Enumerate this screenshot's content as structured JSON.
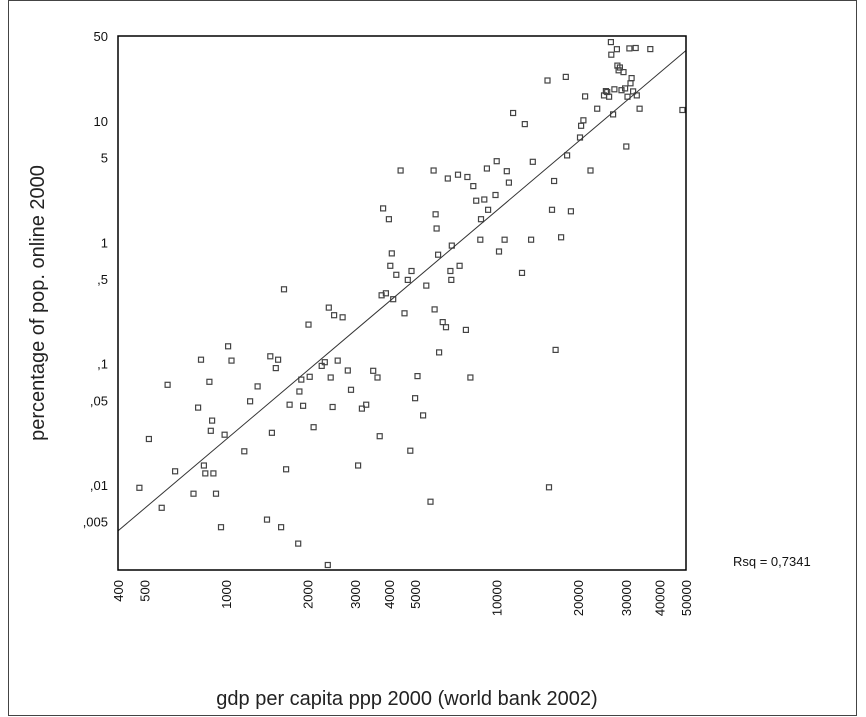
{
  "chart_data": {
    "type": "scatter",
    "xlabel": "gdp per capita ppp 2000 (world bank 2002)",
    "ylabel": "percentage of pop. online 2000",
    "xscale": "log",
    "yscale": "log",
    "xlim": [
      400,
      50000
    ],
    "ylim": [
      0.002,
      50
    ],
    "x_ticks": [
      {
        "value": 400,
        "label": "400"
      },
      {
        "value": 500,
        "label": "500"
      },
      {
        "value": 1000,
        "label": "1000"
      },
      {
        "value": 2000,
        "label": "2000"
      },
      {
        "value": 3000,
        "label": "3000"
      },
      {
        "value": 4000,
        "label": "4000"
      },
      {
        "value": 5000,
        "label": "5000"
      },
      {
        "value": 10000,
        "label": "10000"
      },
      {
        "value": 20000,
        "label": "20000"
      },
      {
        "value": 30000,
        "label": "30000"
      },
      {
        "value": 40000,
        "label": "40000"
      },
      {
        "value": 50000,
        "label": "50000"
      }
    ],
    "y_ticks": [
      {
        "value": 50,
        "label": "50"
      },
      {
        "value": 10,
        "label": "10"
      },
      {
        "value": 5,
        "label": "5"
      },
      {
        "value": 1,
        "label": "1"
      },
      {
        "value": 0.5,
        "label": ",5"
      },
      {
        "value": 0.1,
        "label": ",1"
      },
      {
        "value": 0.05,
        "label": ",05"
      },
      {
        "value": 0.01,
        "label": ",01"
      },
      {
        "value": 0.005,
        "label": ",005"
      }
    ],
    "fit_line": {
      "x": [
        400,
        50000
      ],
      "y": [
        0.0042,
        38
      ],
      "annotation": "Rsq = 0,7341"
    },
    "grid": false,
    "legend": "none",
    "colors": {
      "marker": "#444444",
      "line": "#333333",
      "axis": "#000000"
    },
    "points": [
      [
        480,
        0.0095
      ],
      [
        520,
        0.024
      ],
      [
        580,
        0.0065
      ],
      [
        610,
        0.067
      ],
      [
        650,
        0.013
      ],
      [
        760,
        0.0085
      ],
      [
        790,
        0.0435
      ],
      [
        810,
        0.108
      ],
      [
        830,
        0.0145
      ],
      [
        840,
        0.0125
      ],
      [
        870,
        0.071
      ],
      [
        880,
        0.028
      ],
      [
        890,
        0.034
      ],
      [
        900,
        0.0125
      ],
      [
        920,
        0.0085
      ],
      [
        960,
        0.0045
      ],
      [
        990,
        0.026
      ],
      [
        1020,
        0.139
      ],
      [
        1050,
        0.106
      ],
      [
        1170,
        0.019
      ],
      [
        1230,
        0.049
      ],
      [
        1310,
        0.065
      ],
      [
        1420,
        0.0052
      ],
      [
        1460,
        0.115
      ],
      [
        1480,
        0.027
      ],
      [
        1530,
        0.092
      ],
      [
        1560,
        0.108
      ],
      [
        1600,
        0.0045
      ],
      [
        1640,
        0.41
      ],
      [
        1670,
        0.0135
      ],
      [
        1720,
        0.046
      ],
      [
        1850,
        0.0033
      ],
      [
        1870,
        0.059
      ],
      [
        1900,
        0.074
      ],
      [
        1930,
        0.045
      ],
      [
        2020,
        0.21
      ],
      [
        2040,
        0.078
      ],
      [
        2110,
        0.03
      ],
      [
        2260,
        0.096
      ],
      [
        2320,
        0.103
      ],
      [
        2380,
        0.0022
      ],
      [
        2400,
        0.29
      ],
      [
        2440,
        0.077
      ],
      [
        2480,
        0.044
      ],
      [
        2510,
        0.251
      ],
      [
        2590,
        0.106
      ],
      [
        2700,
        0.241
      ],
      [
        2820,
        0.088
      ],
      [
        2900,
        0.061
      ],
      [
        3080,
        0.0145
      ],
      [
        3180,
        0.0427
      ],
      [
        3300,
        0.046
      ],
      [
        3500,
        0.0875
      ],
      [
        3630,
        0.077
      ],
      [
        3700,
        0.0253
      ],
      [
        3760,
        0.366
      ],
      [
        3810,
        1.9
      ],
      [
        3900,
        0.38
      ],
      [
        4000,
        1.55
      ],
      [
        4050,
        0.64
      ],
      [
        4100,
        0.81
      ],
      [
        4150,
        0.34
      ],
      [
        4260,
        0.54
      ],
      [
        4420,
        3.9
      ],
      [
        4570,
        0.26
      ],
      [
        4700,
        0.49
      ],
      [
        4800,
        0.0192
      ],
      [
        4850,
        0.58
      ],
      [
        5000,
        0.052
      ],
      [
        5100,
        0.079
      ],
      [
        5350,
        0.0375
      ],
      [
        5500,
        0.44
      ],
      [
        5700,
        0.0073
      ],
      [
        5850,
        3.9
      ],
      [
        5900,
        0.28
      ],
      [
        5950,
        1.7
      ],
      [
        6000,
        1.3
      ],
      [
        6080,
        0.79
      ],
      [
        6130,
        0.124
      ],
      [
        6320,
        0.22
      ],
      [
        6500,
        0.2
      ],
      [
        6600,
        3.35
      ],
      [
        6750,
        0.58
      ],
      [
        6800,
        0.49
      ],
      [
        6830,
        0.94
      ],
      [
        7200,
        3.6
      ],
      [
        7300,
        0.64
      ],
      [
        7700,
        0.19
      ],
      [
        7800,
        3.45
      ],
      [
        8000,
        0.077
      ],
      [
        8200,
        2.9
      ],
      [
        8400,
        2.2
      ],
      [
        8700,
        1.05
      ],
      [
        8750,
        1.55
      ],
      [
        9000,
        2.25
      ],
      [
        9200,
        4.05
      ],
      [
        9300,
        1.85
      ],
      [
        9900,
        2.45
      ],
      [
        10000,
        4.65
      ],
      [
        10200,
        0.84
      ],
      [
        10700,
        1.05
      ],
      [
        10900,
        3.85
      ],
      [
        11100,
        3.1
      ],
      [
        11500,
        11.6
      ],
      [
        12400,
        0.56
      ],
      [
        12700,
        9.4
      ],
      [
        13400,
        1.05
      ],
      [
        13600,
        4.6
      ],
      [
        15400,
        21.5
      ],
      [
        15600,
        0.0096
      ],
      [
        16000,
        1.85
      ],
      [
        16300,
        3.2
      ],
      [
        16500,
        0.13
      ],
      [
        17300,
        1.1
      ],
      [
        18000,
        23
      ],
      [
        18200,
        5.2
      ],
      [
        18800,
        1.8
      ],
      [
        20300,
        7.3
      ],
      [
        20500,
        9.1
      ],
      [
        20900,
        10.1
      ],
      [
        21200,
        15.9
      ],
      [
        22200,
        3.9
      ],
      [
        23500,
        12.6
      ],
      [
        24900,
        16.2
      ],
      [
        25300,
        17.6
      ],
      [
        25600,
        17.3
      ],
      [
        26000,
        15.8
      ],
      [
        26400,
        44.5
      ],
      [
        26500,
        35.1
      ],
      [
        26900,
        11.3
      ],
      [
        27200,
        18.2
      ],
      [
        27800,
        38.9
      ],
      [
        27900,
        28.5
      ],
      [
        28200,
        26.1
      ],
      [
        28500,
        27.5
      ],
      [
        28900,
        17.9
      ],
      [
        29400,
        25.2
      ],
      [
        29800,
        18.5
      ],
      [
        30100,
        6.15
      ],
      [
        30400,
        15.8
      ],
      [
        30900,
        39.5
      ],
      [
        31200,
        20.4
      ],
      [
        31500,
        22.5
      ],
      [
        31900,
        17.5
      ],
      [
        32600,
        39.8
      ],
      [
        32900,
        16.2
      ],
      [
        33700,
        12.6
      ],
      [
        36900,
        39
      ],
      [
        48500,
        12.3
      ]
    ]
  }
}
